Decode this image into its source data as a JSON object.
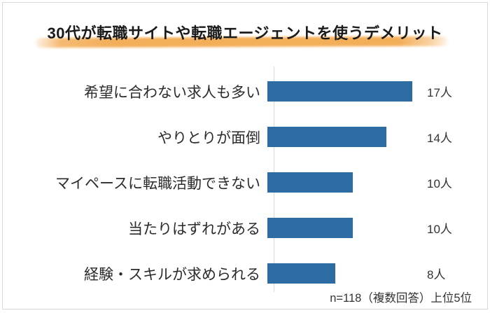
{
  "title": "30代が転職サイトや転職エージェントを使うデメリット",
  "footnote": "n=118（複数回答）上位5位",
  "colors": {
    "bar": "#2d6ca3",
    "highlight": "#f3ae58",
    "axis": "#d9d9d9",
    "border": "#d9d9d9",
    "text": "#2b2b2b"
  },
  "chart_data": {
    "type": "bar",
    "orientation": "horizontal",
    "title": "30代が転職サイトや転職エージェントを使うデメリット",
    "categories": [
      "希望に合わない求人も多い",
      "やりとりが面倒",
      "マイペースに転職活動できない",
      "当たりはずれがある",
      "経験・スキルが求められる"
    ],
    "values": [
      17,
      14,
      10,
      10,
      8
    ],
    "value_labels": [
      "17人",
      "14人",
      "10人",
      "10人",
      "8人"
    ],
    "unit": "人",
    "xlabel": "",
    "ylabel": "",
    "xlim": [
      0,
      18
    ],
    "grid": false,
    "legend": false,
    "annotation": "n=118（複数回答）上位5位"
  }
}
